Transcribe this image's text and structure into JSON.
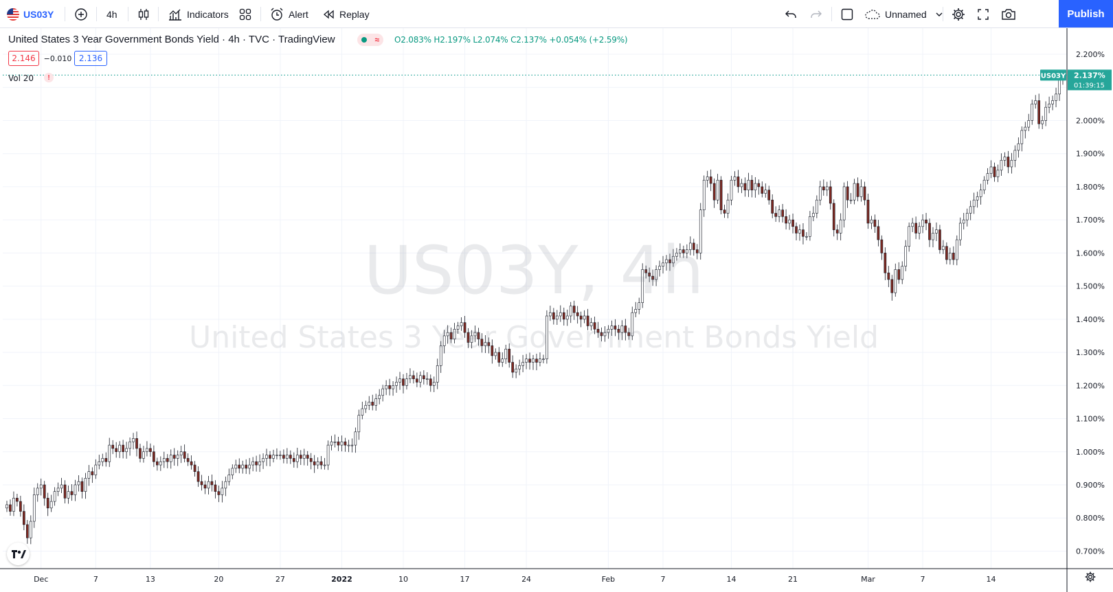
{
  "toolbar": {
    "symbol": "US03Y",
    "interval": "4h",
    "indicators_label": "Indicators",
    "alert_label": "Alert",
    "replay_label": "Replay",
    "layout_name": "Unnamed",
    "publish_label": "Publish"
  },
  "legend": {
    "title": "United States 3 Year Government Bonds Yield · 4h · TVC · TradingView",
    "ohlc": "O2.083%  H2.197%  L2.074%  C2.137%  +0.054% (+2.59%)",
    "bid": "2.146",
    "spread": "−0.010",
    "ask": "2.136",
    "volume_label": "Vol 20",
    "warning": "!"
  },
  "watermark": {
    "symbol_line": "US03Y, 4h",
    "name_line": "United States 3 Year Government Bonds Yield"
  },
  "price_tag": {
    "symbol": "US03Y",
    "price": "2.137%",
    "countdown": "01:39:15"
  },
  "colors": {
    "up": "#089981",
    "down": "#f23645",
    "up_candle_body": "#ffffff",
    "down_candle_body": "#7f2a22",
    "price_line": "#26a69a",
    "accent": "#2962ff"
  },
  "chart_data": {
    "type": "candlestick",
    "title": "United States 3 Year Government Bonds Yield",
    "ylabel": "",
    "xlabel": "",
    "ylim": [
      0.67,
      2.24
    ],
    "y_ticks": [
      "2.200%",
      "2.100%",
      "2.000%",
      "1.900%",
      "1.800%",
      "1.700%",
      "1.600%",
      "1.500%",
      "1.400%",
      "1.300%",
      "1.200%",
      "1.100%",
      "1.000%",
      "0.900%",
      "0.800%",
      "0.700%"
    ],
    "x_ticks": [
      {
        "label": "Dec",
        "i": 10
      },
      {
        "label": "7",
        "i": 26
      },
      {
        "label": "13",
        "i": 42
      },
      {
        "label": "20",
        "i": 62
      },
      {
        "label": "27",
        "i": 80
      },
      {
        "label": "2022",
        "i": 98
      },
      {
        "label": "10",
        "i": 116
      },
      {
        "label": "17",
        "i": 134
      },
      {
        "label": "24",
        "i": 152
      },
      {
        "label": "Feb",
        "i": 176
      },
      {
        "label": "7",
        "i": 192
      },
      {
        "label": "14",
        "i": 212
      },
      {
        "label": "21",
        "i": 230
      },
      {
        "label": "Mar",
        "i": 252
      },
      {
        "label": "7",
        "i": 268
      },
      {
        "label": "14",
        "i": 288
      }
    ],
    "last_close": 2.137,
    "close": [
      0.84,
      0.82,
      0.86,
      0.85,
      0.82,
      0.78,
      0.74,
      0.79,
      0.87,
      0.89,
      0.9,
      0.86,
      0.83,
      0.85,
      0.88,
      0.89,
      0.9,
      0.86,
      0.88,
      0.87,
      0.9,
      0.91,
      0.88,
      0.92,
      0.94,
      0.93,
      0.96,
      0.97,
      0.98,
      0.97,
      1.02,
      1.01,
      1.0,
      1.02,
      1.0,
      1.01,
      1.03,
      1.04,
      1.01,
      0.98,
      1.0,
      1.01,
      1.0,
      0.97,
      0.96,
      0.97,
      0.98,
      0.97,
      0.99,
      0.98,
      0.99,
      1.0,
      0.98,
      0.97,
      0.96,
      0.94,
      0.91,
      0.9,
      0.89,
      0.91,
      0.9,
      0.88,
      0.87,
      0.89,
      0.91,
      0.93,
      0.95,
      0.96,
      0.95,
      0.96,
      0.95,
      0.96,
      0.97,
      0.96,
      0.97,
      0.98,
      0.99,
      0.98,
      0.99,
      0.99,
      0.99,
      0.98,
      0.99,
      0.98,
      0.97,
      0.99,
      0.98,
      0.99,
      0.98,
      0.97,
      0.96,
      0.97,
      0.96,
      0.96,
      1.02,
      1.03,
      1.03,
      1.02,
      1.03,
      1.02,
      1.02,
      1.02,
      1.06,
      1.11,
      1.13,
      1.14,
      1.15,
      1.14,
      1.16,
      1.17,
      1.19,
      1.2,
      1.19,
      1.2,
      1.21,
      1.22,
      1.2,
      1.22,
      1.23,
      1.22,
      1.21,
      1.23,
      1.22,
      1.22,
      1.2,
      1.21,
      1.26,
      1.32,
      1.35,
      1.36,
      1.34,
      1.37,
      1.38,
      1.39,
      1.36,
      1.33,
      1.35,
      1.36,
      1.34,
      1.32,
      1.33,
      1.32,
      1.29,
      1.3,
      1.27,
      1.28,
      1.31,
      1.27,
      1.24,
      1.25,
      1.26,
      1.27,
      1.28,
      1.27,
      1.28,
      1.27,
      1.28,
      1.28,
      1.41,
      1.42,
      1.4,
      1.41,
      1.42,
      1.4,
      1.41,
      1.44,
      1.42,
      1.41,
      1.4,
      1.41,
      1.38,
      1.39,
      1.37,
      1.36,
      1.35,
      1.36,
      1.37,
      1.38,
      1.37,
      1.36,
      1.38,
      1.36,
      1.35,
      1.42,
      1.43,
      1.45,
      1.55,
      1.54,
      1.53,
      1.52,
      1.55,
      1.56,
      1.57,
      1.58,
      1.57,
      1.59,
      1.6,
      1.61,
      1.6,
      1.61,
      1.63,
      1.61,
      1.6,
      1.73,
      1.82,
      1.83,
      1.81,
      1.76,
      1.82,
      1.73,
      1.72,
      1.76,
      1.82,
      1.83,
      1.8,
      1.81,
      1.79,
      1.82,
      1.79,
      1.81,
      1.8,
      1.78,
      1.79,
      1.76,
      1.72,
      1.71,
      1.73,
      1.71,
      1.69,
      1.7,
      1.68,
      1.66,
      1.67,
      1.65,
      1.65,
      1.71,
      1.72,
      1.76,
      1.8,
      1.79,
      1.8,
      1.75,
      1.67,
      1.66,
      1.7,
      1.8,
      1.76,
      1.76,
      1.81,
      1.77,
      1.8,
      1.76,
      1.69,
      1.7,
      1.68,
      1.64,
      1.6,
      1.54,
      1.52,
      1.48,
      1.55,
      1.52,
      1.56,
      1.62,
      1.68,
      1.69,
      1.66,
      1.68,
      1.7,
      1.69,
      1.64,
      1.66,
      1.67,
      1.61,
      1.62,
      1.58,
      1.6,
      1.58,
      1.64,
      1.69,
      1.7,
      1.72,
      1.74,
      1.76,
      1.77,
      1.79,
      1.82,
      1.84,
      1.86,
      1.83,
      1.85,
      1.88,
      1.89,
      1.86,
      1.88,
      1.91,
      1.93,
      1.97,
      1.98,
      2.0,
      2.05,
      2.06,
      1.99,
      2.0,
      2.04,
      2.05,
      2.06,
      2.08,
      2.13,
      2.137
    ]
  }
}
